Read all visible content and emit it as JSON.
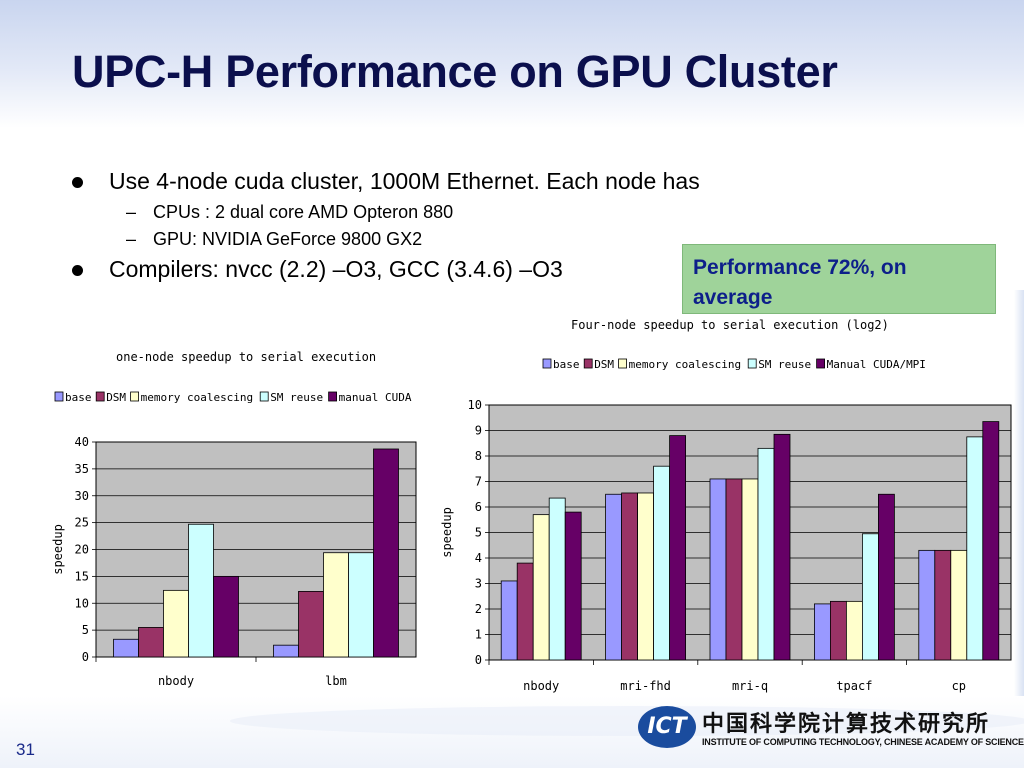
{
  "slide": {
    "title": "UPC-H Performance on GPU Cluster",
    "page_number": "31"
  },
  "bullets": [
    {
      "text": "Use 4-node cuda cluster, 1000M Ethernet. Each node has",
      "sub": [
        "CPUs : 2 dual core AMD Opteron 880",
        "GPU: NVIDIA GeForce 9800 GX2"
      ]
    },
    {
      "text": "Compilers: nvcc (2.2) –O3, GCC (3.4.6) –O3",
      "sub": []
    }
  ],
  "callout": {
    "text": "Performance 72%, on average"
  },
  "logo": {
    "mark": "ICT",
    "cn": "中国科学院计算技术研究所",
    "en": "INSTITUTE OF COMPUTING TECHNOLOGY, CHINESE ACADEMY OF SCIENCES"
  },
  "colors": {
    "title": "#0b0f4d",
    "callout_bg": "#9fd39a",
    "callout_text": "#0d1f8a",
    "series": [
      "#9999ff",
      "#993366",
      "#ffffcc",
      "#ccffff",
      "#660066"
    ],
    "plot_bg": "#c0c0c0"
  },
  "chart_data": [
    {
      "type": "bar",
      "title": "one-node speedup to serial execution",
      "ylabel": "speedup",
      "categories": [
        "nbody",
        "lbm"
      ],
      "series": [
        {
          "name": "base",
          "values": [
            3.3,
            2.2
          ]
        },
        {
          "name": "DSM",
          "values": [
            5.5,
            12.2
          ]
        },
        {
          "name": "memory coalescing",
          "values": [
            12.4,
            19.4
          ]
        },
        {
          "name": "SM reuse",
          "values": [
            24.7,
            19.4
          ]
        },
        {
          "name": "manual CUDA",
          "values": [
            15.0,
            38.7
          ]
        }
      ],
      "ylim": [
        0,
        40
      ],
      "yticks": [
        0,
        5,
        10,
        15,
        20,
        25,
        30,
        35,
        40
      ],
      "grid": true,
      "legend": "top"
    },
    {
      "type": "bar",
      "title": "Four-node speedup to serial execution (log2)",
      "ylabel": "speedup",
      "categories": [
        "nbody",
        "mri-fhd",
        "mri-q",
        "tpacf",
        "cp"
      ],
      "series": [
        {
          "name": "base",
          "values": [
            3.1,
            6.5,
            7.1,
            2.2,
            4.3
          ]
        },
        {
          "name": "DSM",
          "values": [
            3.8,
            6.55,
            7.1,
            2.3,
            4.3
          ]
        },
        {
          "name": "memory coalescing",
          "values": [
            5.7,
            6.55,
            7.1,
            2.3,
            4.3
          ]
        },
        {
          "name": "SM reuse",
          "values": [
            6.35,
            7.6,
            8.3,
            4.95,
            8.75
          ]
        },
        {
          "name": "Manual CUDA/MPI",
          "values": [
            5.8,
            8.8,
            8.85,
            6.5,
            9.35
          ]
        }
      ],
      "ylim": [
        0,
        10
      ],
      "yticks": [
        0,
        1,
        2,
        3,
        4,
        5,
        6,
        7,
        8,
        9,
        10
      ],
      "grid": true,
      "legend": "top"
    }
  ]
}
